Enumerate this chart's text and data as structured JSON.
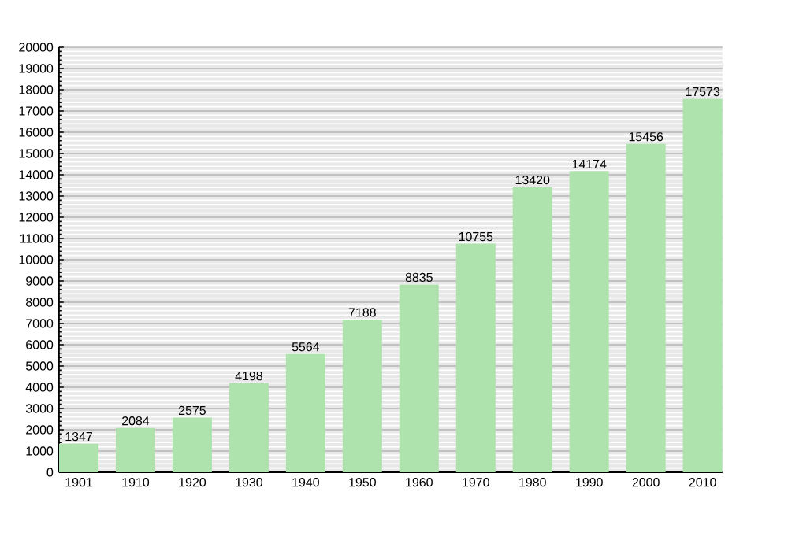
{
  "chart_data": {
    "type": "bar",
    "categories": [
      "1901",
      "1910",
      "1920",
      "1930",
      "1940",
      "1950",
      "1960",
      "1970",
      "1980",
      "1990",
      "2000",
      "2010"
    ],
    "values": [
      1347,
      2084,
      2575,
      4198,
      5564,
      7188,
      8835,
      10755,
      13420,
      14174,
      15456,
      17573
    ],
    "color": "#aee3ae",
    "ylim": [
      0,
      20000
    ],
    "yticks": [
      0,
      1000,
      2000,
      3000,
      4000,
      5000,
      6000,
      7000,
      8000,
      9000,
      10000,
      11000,
      12000,
      13000,
      14000,
      15000,
      16000,
      17000,
      18000,
      19000,
      20000
    ],
    "grid": "y",
    "data_labels": true
  }
}
